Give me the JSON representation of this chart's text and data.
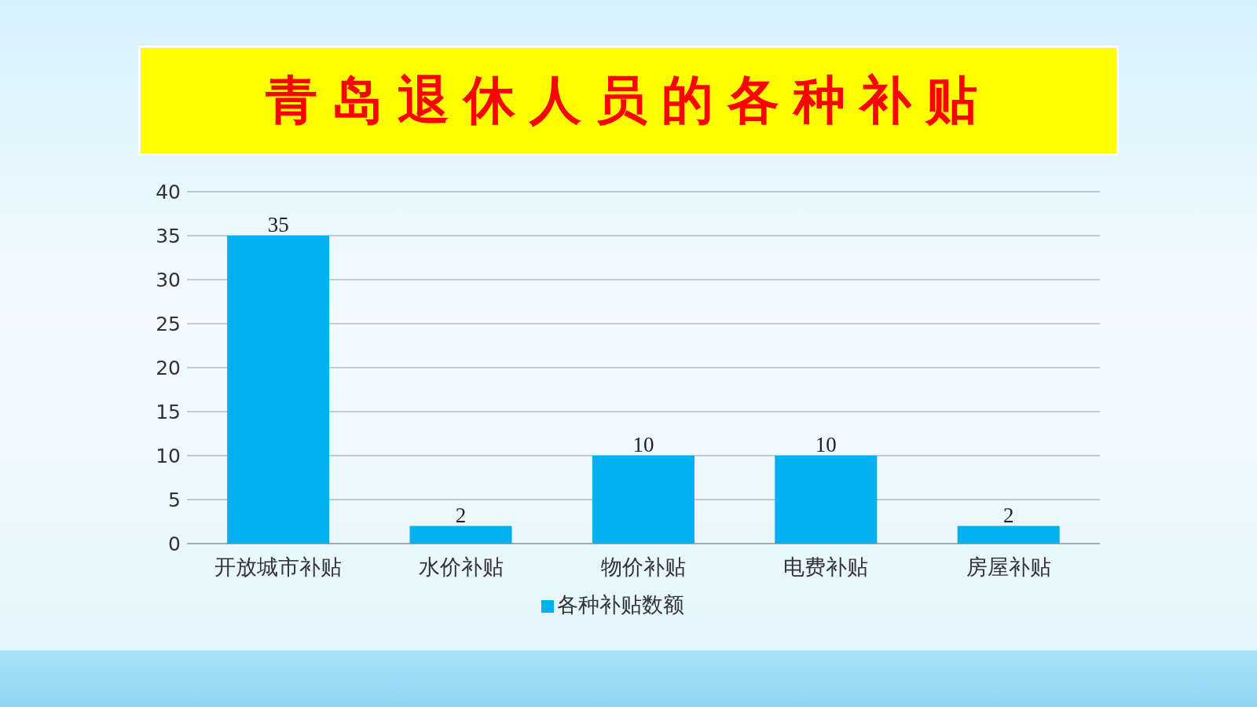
{
  "chart_data": {
    "type": "bar",
    "title": "青岛退休人员的各种补贴",
    "categories": [
      "开放城市补贴",
      "水价补贴",
      "物价补贴",
      "电费补贴",
      "房屋补贴"
    ],
    "series": [
      {
        "name": "各种补贴数额",
        "color": "#00b0f0",
        "values": [
          35,
          2,
          10,
          10,
          2
        ]
      }
    ],
    "ylim": [
      0,
      40
    ],
    "yticks": [
      0,
      5,
      10,
      15,
      20,
      25,
      30,
      35,
      40
    ],
    "grid": "y",
    "legend": "bottom",
    "data_labels": true
  }
}
